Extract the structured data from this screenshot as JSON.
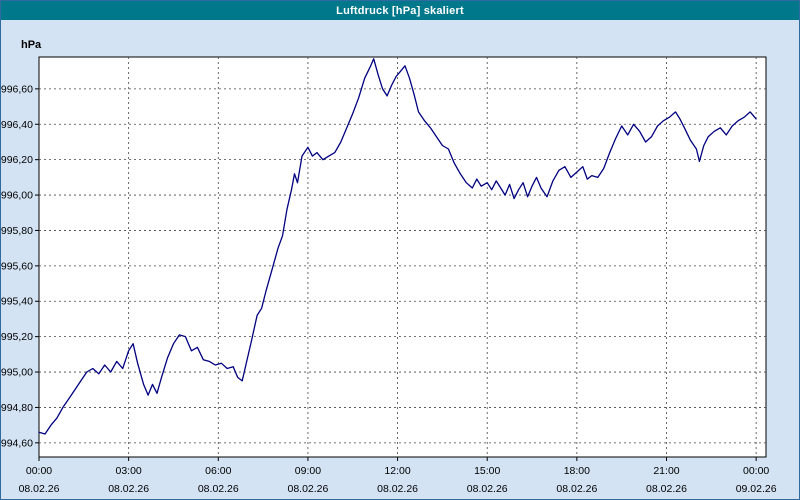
{
  "window": {
    "title": "Luftdruck [hPa] skaliert"
  },
  "chart_data": {
    "type": "line",
    "title": "Luftdruck [hPa] skaliert",
    "xlabel": "",
    "ylabel": "hPa",
    "legend": "none",
    "grid": true,
    "xlim": [
      0,
      24.33
    ],
    "ylim": [
      994.52,
      996.78
    ],
    "y_ticks": [
      {
        "value": 994.6,
        "label": "994,60"
      },
      {
        "value": 994.8,
        "label": "994,80"
      },
      {
        "value": 995.0,
        "label": "995,00"
      },
      {
        "value": 995.2,
        "label": "995,20"
      },
      {
        "value": 995.4,
        "label": "995,40"
      },
      {
        "value": 995.6,
        "label": "995,60"
      },
      {
        "value": 995.8,
        "label": "995,80"
      },
      {
        "value": 996.0,
        "label": "996,00"
      },
      {
        "value": 996.2,
        "label": "996,20"
      },
      {
        "value": 996.4,
        "label": "996,40"
      },
      {
        "value": 996.6,
        "label": "996,60"
      }
    ],
    "x_ticks": [
      {
        "hour": 0,
        "time": "00:00",
        "date": "08.02.26"
      },
      {
        "hour": 3,
        "time": "03:00",
        "date": "08.02.26"
      },
      {
        "hour": 6,
        "time": "06:00",
        "date": "08.02.26"
      },
      {
        "hour": 9,
        "time": "09:00",
        "date": "08.02.26"
      },
      {
        "hour": 12,
        "time": "12:00",
        "date": "08.02.26"
      },
      {
        "hour": 15,
        "time": "15:00",
        "date": "08.02.26"
      },
      {
        "hour": 18,
        "time": "18:00",
        "date": "08.02.26"
      },
      {
        "hour": 21,
        "time": "21:00",
        "date": "08.02.26"
      },
      {
        "hour": 24,
        "time": "00:00",
        "date": "09.02.26"
      }
    ],
    "series": [
      {
        "name": "Luftdruck [hPa]",
        "points": [
          [
            0.0,
            994.66
          ],
          [
            0.2,
            994.65
          ],
          [
            0.4,
            994.7
          ],
          [
            0.6,
            994.74
          ],
          [
            0.8,
            994.8
          ],
          [
            1.0,
            994.85
          ],
          [
            1.2,
            994.9
          ],
          [
            1.4,
            994.95
          ],
          [
            1.6,
            995.0
          ],
          [
            1.8,
            995.02
          ],
          [
            2.0,
            994.99
          ],
          [
            2.2,
            995.04
          ],
          [
            2.4,
            995.0
          ],
          [
            2.6,
            995.06
          ],
          [
            2.8,
            995.02
          ],
          [
            3.0,
            995.12
          ],
          [
            3.15,
            995.16
          ],
          [
            3.3,
            995.05
          ],
          [
            3.5,
            994.93
          ],
          [
            3.65,
            994.87
          ],
          [
            3.8,
            994.93
          ],
          [
            3.95,
            994.88
          ],
          [
            4.1,
            994.97
          ],
          [
            4.3,
            995.08
          ],
          [
            4.5,
            995.16
          ],
          [
            4.7,
            995.21
          ],
          [
            4.9,
            995.2
          ],
          [
            5.1,
            995.12
          ],
          [
            5.3,
            995.14
          ],
          [
            5.5,
            995.07
          ],
          [
            5.7,
            995.06
          ],
          [
            5.9,
            995.04
          ],
          [
            6.1,
            995.05
          ],
          [
            6.3,
            995.02
          ],
          [
            6.5,
            995.03
          ],
          [
            6.65,
            994.97
          ],
          [
            6.8,
            994.95
          ],
          [
            6.95,
            995.06
          ],
          [
            7.1,
            995.17
          ],
          [
            7.3,
            995.32
          ],
          [
            7.45,
            995.36
          ],
          [
            7.6,
            995.46
          ],
          [
            7.8,
            995.58
          ],
          [
            8.0,
            995.7
          ],
          [
            8.15,
            995.77
          ],
          [
            8.3,
            995.92
          ],
          [
            8.45,
            996.03
          ],
          [
            8.55,
            996.12
          ],
          [
            8.65,
            996.07
          ],
          [
            8.8,
            996.22
          ],
          [
            9.0,
            996.27
          ],
          [
            9.15,
            996.22
          ],
          [
            9.3,
            996.24
          ],
          [
            9.5,
            996.2
          ],
          [
            9.7,
            996.22
          ],
          [
            9.9,
            996.24
          ],
          [
            10.1,
            996.3
          ],
          [
            10.3,
            996.38
          ],
          [
            10.5,
            996.46
          ],
          [
            10.7,
            996.55
          ],
          [
            10.9,
            996.66
          ],
          [
            11.1,
            996.73
          ],
          [
            11.2,
            996.77
          ],
          [
            11.35,
            996.68
          ],
          [
            11.5,
            996.6
          ],
          [
            11.65,
            996.56
          ],
          [
            11.8,
            996.62
          ],
          [
            11.95,
            996.67
          ],
          [
            12.1,
            996.7
          ],
          [
            12.25,
            996.73
          ],
          [
            12.4,
            996.66
          ],
          [
            12.55,
            996.57
          ],
          [
            12.7,
            996.47
          ],
          [
            12.9,
            996.42
          ],
          [
            13.1,
            996.38
          ],
          [
            13.3,
            996.33
          ],
          [
            13.5,
            996.28
          ],
          [
            13.7,
            996.26
          ],
          [
            13.9,
            996.18
          ],
          [
            14.1,
            996.12
          ],
          [
            14.3,
            996.07
          ],
          [
            14.5,
            996.04
          ],
          [
            14.65,
            996.09
          ],
          [
            14.8,
            996.05
          ],
          [
            15.0,
            996.07
          ],
          [
            15.15,
            996.03
          ],
          [
            15.3,
            996.08
          ],
          [
            15.45,
            996.04
          ],
          [
            15.6,
            996.0
          ],
          [
            15.75,
            996.06
          ],
          [
            15.9,
            995.98
          ],
          [
            16.05,
            996.03
          ],
          [
            16.2,
            996.07
          ],
          [
            16.35,
            995.99
          ],
          [
            16.5,
            996.05
          ],
          [
            16.65,
            996.1
          ],
          [
            16.8,
            996.04
          ],
          [
            17.0,
            995.99
          ],
          [
            17.2,
            996.08
          ],
          [
            17.4,
            996.14
          ],
          [
            17.6,
            996.16
          ],
          [
            17.8,
            996.1
          ],
          [
            18.0,
            996.13
          ],
          [
            18.2,
            996.16
          ],
          [
            18.35,
            996.09
          ],
          [
            18.5,
            996.11
          ],
          [
            18.7,
            996.1
          ],
          [
            18.9,
            996.15
          ],
          [
            19.1,
            996.24
          ],
          [
            19.3,
            996.32
          ],
          [
            19.5,
            996.39
          ],
          [
            19.7,
            996.34
          ],
          [
            19.9,
            996.4
          ],
          [
            20.1,
            996.36
          ],
          [
            20.3,
            996.3
          ],
          [
            20.5,
            996.33
          ],
          [
            20.7,
            996.39
          ],
          [
            20.9,
            996.42
          ],
          [
            21.1,
            996.44
          ],
          [
            21.3,
            996.47
          ],
          [
            21.45,
            996.43
          ],
          [
            21.6,
            996.38
          ],
          [
            21.8,
            996.31
          ],
          [
            22.0,
            996.26
          ],
          [
            22.1,
            996.19
          ],
          [
            22.25,
            996.28
          ],
          [
            22.4,
            996.33
          ],
          [
            22.6,
            996.36
          ],
          [
            22.8,
            996.38
          ],
          [
            23.0,
            996.34
          ],
          [
            23.2,
            996.39
          ],
          [
            23.4,
            996.42
          ],
          [
            23.6,
            996.44
          ],
          [
            23.8,
            996.47
          ],
          [
            24.0,
            996.43
          ]
        ]
      }
    ],
    "colors": {
      "line": "#000080",
      "title_bar": "#00788c",
      "title_text": "#ffffff",
      "background": "#d3e3f3",
      "plot_background": "#ffffff",
      "grid": "#444444",
      "axis": "#000000",
      "window_border": "#2f6aa0"
    }
  }
}
